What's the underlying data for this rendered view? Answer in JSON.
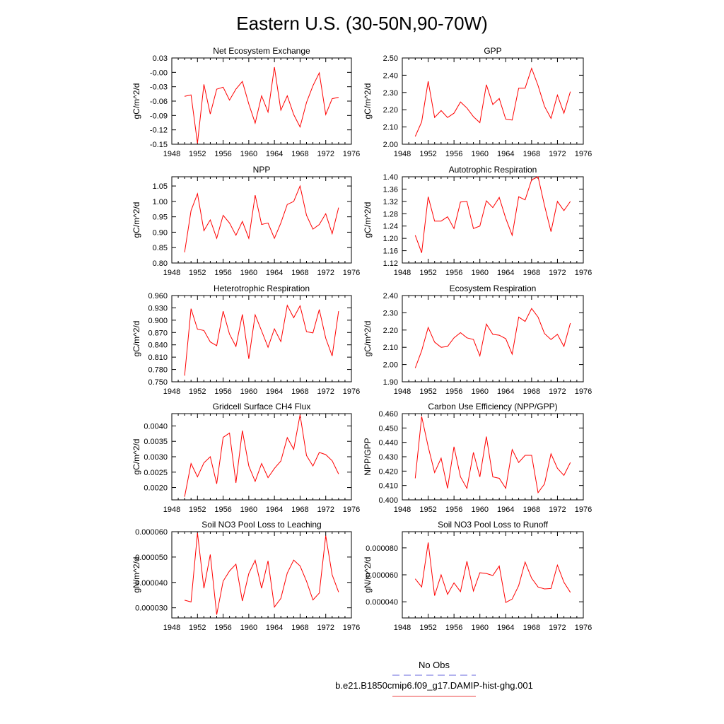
{
  "figure_title": "Eastern U.S. (30-50N,90-70W)",
  "legend": {
    "entries": [
      {
        "label": "No Obs",
        "color": "#6666dd",
        "dash": "dashed"
      },
      {
        "label": "b.e21.B1850cmip6.f09_g17.DAMIP-hist-ghg.001",
        "color": "#ee4444",
        "dash": "solid"
      }
    ]
  },
  "chart_data": [
    {
      "type": "line",
      "title": "Net Ecosystem Exchange",
      "ylabel": "gC/m^2/d",
      "xlim": [
        1948,
        1976
      ],
      "xticks": [
        "1948",
        "1952",
        "1956",
        "1960",
        "1964",
        "1968",
        "1972",
        "1976"
      ],
      "ylim": [
        -0.15,
        0.03
      ],
      "yticks": [
        "-0.15",
        "-0.12",
        "-0.09",
        "-0.06",
        "-0.03",
        "-0.00",
        "0.03"
      ],
      "series": [
        {
          "color": "#ff0000",
          "x": [
            1950,
            1951,
            1952,
            1953,
            1954,
            1955,
            1956,
            1957,
            1958,
            1959,
            1960,
            1961,
            1962,
            1963,
            1964,
            1965,
            1966,
            1967,
            1968,
            1969,
            1970,
            1971,
            1972,
            1973,
            1974
          ],
          "values": [
            -0.05,
            -0.047,
            -0.148,
            -0.025,
            -0.087,
            -0.035,
            -0.031,
            -0.058,
            -0.035,
            -0.019,
            -0.066,
            -0.106,
            -0.049,
            -0.083,
            0.011,
            -0.079,
            -0.049,
            -0.088,
            -0.114,
            -0.063,
            -0.028,
            -0.001,
            -0.088,
            -0.055,
            -0.052
          ]
        }
      ]
    },
    {
      "type": "line",
      "title": "GPP",
      "ylabel": "gC/m^2/d",
      "xlim": [
        1948,
        1976
      ],
      "xticks": [
        "1948",
        "1952",
        "1956",
        "1960",
        "1964",
        "1968",
        "1972",
        "1976"
      ],
      "ylim": [
        2.0,
        2.5
      ],
      "yticks": [
        "2.00",
        "2.10",
        "2.20",
        "2.30",
        "2.40",
        "2.50"
      ],
      "series": [
        {
          "color": "#ff0000",
          "x": [
            1950,
            1951,
            1952,
            1953,
            1954,
            1955,
            1956,
            1957,
            1958,
            1959,
            1960,
            1961,
            1962,
            1963,
            1964,
            1965,
            1966,
            1967,
            1968,
            1969,
            1970,
            1971,
            1972,
            1973,
            1974
          ],
          "values": [
            2.045,
            2.13,
            2.365,
            2.155,
            2.195,
            2.155,
            2.18,
            2.245,
            2.21,
            2.16,
            2.125,
            2.345,
            2.23,
            2.265,
            2.145,
            2.14,
            2.325,
            2.325,
            2.44,
            2.34,
            2.22,
            2.15,
            2.285,
            2.18,
            2.305
          ]
        }
      ]
    },
    {
      "type": "line",
      "title": "NPP",
      "ylabel": "gC/m^2/d",
      "xlim": [
        1948,
        1976
      ],
      "xticks": [
        "1948",
        "1952",
        "1956",
        "1960",
        "1964",
        "1968",
        "1972",
        "1976"
      ],
      "ylim": [
        0.8,
        1.08
      ],
      "yticks": [
        "0.80",
        "0.85",
        "0.90",
        "0.95",
        "1.00",
        "1.05"
      ],
      "series": [
        {
          "color": "#ff0000",
          "x": [
            1950,
            1951,
            1952,
            1953,
            1954,
            1955,
            1956,
            1957,
            1958,
            1959,
            1960,
            1961,
            1962,
            1963,
            1964,
            1965,
            1966,
            1967,
            1968,
            1969,
            1970,
            1971,
            1972,
            1973,
            1974
          ],
          "values": [
            0.835,
            0.97,
            1.025,
            0.905,
            0.94,
            0.88,
            0.955,
            0.93,
            0.89,
            0.935,
            0.88,
            1.02,
            0.925,
            0.93,
            0.88,
            0.93,
            0.99,
            1.0,
            1.05,
            0.955,
            0.91,
            0.925,
            0.96,
            0.895,
            0.98
          ]
        }
      ]
    },
    {
      "type": "line",
      "title": "Autotrophic Respiration",
      "ylabel": "gC/m^2/d",
      "xlim": [
        1948,
        1976
      ],
      "xticks": [
        "1948",
        "1952",
        "1956",
        "1960",
        "1964",
        "1968",
        "1972",
        "1976"
      ],
      "ylim": [
        1.12,
        1.4
      ],
      "yticks": [
        "1.12",
        "1.16",
        "1.20",
        "1.24",
        "1.28",
        "1.32",
        "1.36",
        "1.40"
      ],
      "series": [
        {
          "color": "#ff0000",
          "x": [
            1950,
            1951,
            1952,
            1953,
            1954,
            1955,
            1956,
            1957,
            1958,
            1959,
            1960,
            1961,
            1962,
            1963,
            1964,
            1965,
            1966,
            1967,
            1968,
            1969,
            1970,
            1971,
            1972,
            1973,
            1974
          ],
          "values": [
            1.21,
            1.153,
            1.335,
            1.256,
            1.256,
            1.27,
            1.232,
            1.318,
            1.32,
            1.232,
            1.24,
            1.322,
            1.3,
            1.333,
            1.265,
            1.21,
            1.335,
            1.325,
            1.39,
            1.4,
            1.307,
            1.222,
            1.32,
            1.29,
            1.32
          ]
        }
      ]
    },
    {
      "type": "line",
      "title": "Heterotrophic Respiration",
      "ylabel": "gC/m^2/d",
      "xlim": [
        1948,
        1976
      ],
      "xticks": [
        "1948",
        "1952",
        "1956",
        "1960",
        "1964",
        "1968",
        "1972",
        "1976"
      ],
      "ylim": [
        0.75,
        0.96
      ],
      "yticks": [
        "0.750",
        "0.780",
        "0.810",
        "0.840",
        "0.870",
        "0.900",
        "0.930",
        "0.960"
      ],
      "series": [
        {
          "color": "#ff0000",
          "x": [
            1950,
            1951,
            1952,
            1953,
            1954,
            1955,
            1956,
            1957,
            1958,
            1959,
            1960,
            1961,
            1962,
            1963,
            1964,
            1965,
            1966,
            1967,
            1968,
            1969,
            1970,
            1971,
            1972,
            1973,
            1974
          ],
          "values": [
            0.765,
            0.928,
            0.878,
            0.875,
            0.847,
            0.838,
            0.922,
            0.866,
            0.836,
            0.914,
            0.806,
            0.913,
            0.874,
            0.834,
            0.879,
            0.848,
            0.936,
            0.906,
            0.935,
            0.872,
            0.869,
            0.926,
            0.856,
            0.813,
            0.922
          ]
        }
      ]
    },
    {
      "type": "line",
      "title": "Ecosystem Respiration",
      "ylabel": "gC/m^2/d",
      "xlim": [
        1948,
        1976
      ],
      "xticks": [
        "1948",
        "1952",
        "1956",
        "1960",
        "1964",
        "1968",
        "1972",
        "1976"
      ],
      "ylim": [
        1.9,
        2.4
      ],
      "yticks": [
        "1.90",
        "2.00",
        "2.10",
        "2.20",
        "2.30",
        "2.40"
      ],
      "series": [
        {
          "color": "#ff0000",
          "x": [
            1950,
            1951,
            1952,
            1953,
            1954,
            1955,
            1956,
            1957,
            1958,
            1959,
            1960,
            1961,
            1962,
            1963,
            1964,
            1965,
            1966,
            1967,
            1968,
            1969,
            1970,
            1971,
            1972,
            1973,
            1974
          ],
          "values": [
            1.98,
            2.08,
            2.215,
            2.13,
            2.1,
            2.105,
            2.155,
            2.185,
            2.155,
            2.145,
            2.05,
            2.235,
            2.175,
            2.17,
            2.15,
            2.06,
            2.275,
            2.25,
            2.325,
            2.275,
            2.18,
            2.145,
            2.175,
            2.105,
            2.24
          ]
        }
      ]
    },
    {
      "type": "line",
      "title": "Gridcell Surface CH4 Flux",
      "ylabel": "gC/m^2/d",
      "xlim": [
        1948,
        1976
      ],
      "xticks": [
        "1948",
        "1952",
        "1956",
        "1960",
        "1964",
        "1968",
        "1972",
        "1976"
      ],
      "ylim": [
        0.0016,
        0.0044
      ],
      "yticks": [
        "0.0020",
        "0.0025",
        "0.0030",
        "0.0035",
        "0.0040"
      ],
      "series": [
        {
          "color": "#ff0000",
          "x": [
            1950,
            1951,
            1952,
            1953,
            1954,
            1955,
            1956,
            1957,
            1958,
            1959,
            1960,
            1961,
            1962,
            1963,
            1964,
            1965,
            1966,
            1967,
            1968,
            1969,
            1970,
            1971,
            1972,
            1973,
            1974
          ],
          "values": [
            0.0017,
            0.00278,
            0.00235,
            0.0028,
            0.003,
            0.00212,
            0.00363,
            0.00377,
            0.00215,
            0.00385,
            0.0027,
            0.0022,
            0.00278,
            0.00232,
            0.00262,
            0.00286,
            0.00362,
            0.00324,
            0.00436,
            0.00304,
            0.0027,
            0.00314,
            0.00307,
            0.00287,
            0.00244
          ]
        }
      ]
    },
    {
      "type": "line",
      "title": "Carbon Use Efficiency (NPP/GPP)",
      "ylabel": "NPP/GPP",
      "xlim": [
        1948,
        1976
      ],
      "xticks": [
        "1948",
        "1952",
        "1956",
        "1960",
        "1964",
        "1968",
        "1972",
        "1976"
      ],
      "ylim": [
        0.4,
        0.46
      ],
      "yticks": [
        "0.400",
        "0.410",
        "0.420",
        "0.430",
        "0.440",
        "0.450",
        "0.460"
      ],
      "series": [
        {
          "color": "#ff0000",
          "x": [
            1950,
            1951,
            1952,
            1953,
            1954,
            1955,
            1956,
            1957,
            1958,
            1959,
            1960,
            1961,
            1962,
            1963,
            1964,
            1965,
            1966,
            1967,
            1968,
            1969,
            1970,
            1971,
            1972,
            1973,
            1974
          ],
          "values": [
            0.415,
            0.458,
            0.437,
            0.419,
            0.429,
            0.408,
            0.437,
            0.416,
            0.408,
            0.433,
            0.416,
            0.444,
            0.416,
            0.415,
            0.408,
            0.435,
            0.426,
            0.431,
            0.431,
            0.405,
            0.411,
            0.432,
            0.422,
            0.417,
            0.426
          ]
        }
      ]
    },
    {
      "type": "line",
      "title": "Soil NO3 Pool Loss to Leaching",
      "ylabel": "gN/m^2/d",
      "xlim": [
        1948,
        1976
      ],
      "xticks": [
        "1948",
        "1952",
        "1956",
        "1960",
        "1964",
        "1968",
        "1972",
        "1976"
      ],
      "ylim": [
        2.6e-05,
        6e-05
      ],
      "yticks": [
        "0.000030",
        "0.000040",
        "0.000050",
        "0.000060"
      ],
      "series": [
        {
          "color": "#ff0000",
          "x": [
            1950,
            1951,
            1952,
            1953,
            1954,
            1955,
            1956,
            1957,
            1958,
            1959,
            1960,
            1961,
            1962,
            1963,
            1964,
            1965,
            1966,
            1967,
            1968,
            1969,
            1970,
            1971,
            1972,
            1973,
            1974
          ],
          "values": [
            3.3e-05,
            3.23e-05,
            5.95e-05,
            3.77e-05,
            5.1e-05,
            2.73e-05,
            4.05e-05,
            4.45e-05,
            4.72e-05,
            3.27e-05,
            4.35e-05,
            4.87e-05,
            3.77e-05,
            4.85e-05,
            3.03e-05,
            3.37e-05,
            4.37e-05,
            4.88e-05,
            4.65e-05,
            4.05e-05,
            3.31e-05,
            3.58e-05,
            5.84e-05,
            4.3e-05,
            3.62e-05
          ]
        }
      ]
    },
    {
      "type": "line",
      "title": "Soil NO3 Pool Loss to Runoff",
      "ylabel": "gN/m^2/d",
      "xlim": [
        1948,
        1976
      ],
      "xticks": [
        "1948",
        "1952",
        "1956",
        "1960",
        "1964",
        "1968",
        "1972",
        "1976"
      ],
      "ylim": [
        2.8e-05,
        9.2e-05
      ],
      "yticks": [
        "0.000040",
        "0.000060",
        "0.000080"
      ],
      "series": [
        {
          "color": "#ff0000",
          "x": [
            1950,
            1951,
            1952,
            1953,
            1954,
            1955,
            1956,
            1957,
            1958,
            1959,
            1960,
            1961,
            1962,
            1963,
            1964,
            1965,
            1966,
            1967,
            1968,
            1969,
            1970,
            1971,
            1972,
            1973,
            1974
          ],
          "values": [
            5.7e-05,
            5.1e-05,
            8.4e-05,
            4.45e-05,
            6e-05,
            4.55e-05,
            5.4e-05,
            4.75e-05,
            7e-05,
            4.8e-05,
            6.15e-05,
            6.1e-05,
            5.95e-05,
            6.65e-05,
            3.95e-05,
            4.2e-05,
            5.2e-05,
            6.95e-05,
            5.75e-05,
            5.1e-05,
            4.95e-05,
            4.98e-05,
            6.72e-05,
            5.45e-05,
            4.7e-05
          ]
        }
      ]
    }
  ]
}
